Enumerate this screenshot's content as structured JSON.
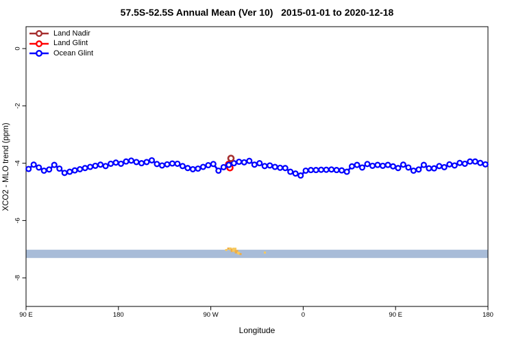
{
  "title": "57.5S-52.5S Annual Mean (Ver 10)   2015-01-01 to 2020-12-18",
  "legend": {
    "items": [
      {
        "label": "Land Nadir",
        "color": "#a52f2f"
      },
      {
        "label": "Land Glint",
        "color": "#ff0000"
      },
      {
        "label": "Ocean Glint",
        "color": "#0000ff"
      }
    ]
  },
  "chart_data": {
    "type": "line",
    "title": "57.5S-52.5S Annual Mean (Ver 10)   2015-01-01 to 2020-12-18",
    "xlabel": "Longitude",
    "ylabel": "XCO2 - MLO trend (ppm)",
    "x_tick_labels": [
      "90 E",
      "180",
      "90 W",
      "0",
      "90 E",
      "180"
    ],
    "x_tick_deg_unwrapped": [
      90,
      180,
      270,
      360,
      450,
      540
    ],
    "y_ticks": [
      0,
      -2,
      -4,
      -6,
      -8
    ],
    "xlim_deg_unwrapped": [
      90,
      540
    ],
    "ylim": [
      -9.0,
      0.76
    ],
    "grid": false,
    "legend_position": "top-left",
    "series": [
      {
        "name": "Ocean Glint",
        "color": "#0000ff",
        "marker": "open-circle",
        "x_start_deg": 92.5,
        "x_step_deg": 5,
        "values": [
          -4.2,
          -4.05,
          -4.15,
          -4.26,
          -4.22,
          -4.06,
          -4.19,
          -4.34,
          -4.3,
          -4.25,
          -4.21,
          -4.17,
          -4.13,
          -4.09,
          -4.05,
          -4.1,
          -4.02,
          -3.98,
          -4.02,
          -3.94,
          -3.91,
          -3.96,
          -4.0,
          -3.96,
          -3.9,
          -4.03,
          -4.08,
          -4.04,
          -4.01,
          -4.02,
          -4.1,
          -4.17,
          -4.21,
          -4.19,
          -4.13,
          -4.07,
          -4.03,
          -4.26,
          -4.14,
          -4.06,
          -4.0,
          -3.95,
          -3.97,
          -3.92,
          -4.05,
          -4.0,
          -4.1,
          -4.08,
          -4.13,
          -4.16,
          -4.17,
          -4.3,
          -4.36,
          -4.43,
          -4.26,
          -4.24,
          -4.24,
          -4.23,
          -4.23,
          -4.22,
          -4.24,
          -4.25,
          -4.3,
          -4.11,
          -4.06,
          -4.15,
          -4.03,
          -4.09,
          -4.06,
          -4.09,
          -4.06,
          -4.11,
          -4.17,
          -4.05,
          -4.15,
          -4.26,
          -4.22,
          -4.06,
          -4.18,
          -4.18,
          -4.1,
          -4.14,
          -4.04,
          -4.08,
          -3.99,
          -4.02,
          -3.94,
          -3.94,
          -3.99,
          -4.04
        ]
      },
      {
        "name": "Land Glint",
        "color": "#ff0000",
        "marker": "open-circle",
        "points": [
          {
            "deg": 287.4,
            "value": -4.04
          },
          {
            "deg": 288.6,
            "value": -4.16
          }
        ]
      },
      {
        "name": "Land Nadir",
        "color": "#a52f2f",
        "marker": "open-circle",
        "points": [
          {
            "deg": 289.6,
            "value": -3.83
          }
        ]
      }
    ],
    "surface_band": {
      "from_ppm": -7.02,
      "to_ppm": -7.31,
      "color": "#a8bcd8"
    },
    "topography_marks": {
      "colors": [
        "#f6c95e",
        "#f0ae45"
      ],
      "points_deg_ppm_size": [
        [
          285.0,
          -7.03,
          3
        ],
        [
          287.0,
          -6.98,
          3
        ],
        [
          289.0,
          -6.99,
          4
        ],
        [
          291.0,
          -7.04,
          5
        ],
        [
          293.0,
          -7.02,
          6
        ],
        [
          295.0,
          -7.09,
          5
        ],
        [
          297.0,
          -7.14,
          4
        ],
        [
          299.0,
          -7.17,
          3
        ],
        [
          322.7,
          -7.12,
          3
        ]
      ]
    }
  }
}
